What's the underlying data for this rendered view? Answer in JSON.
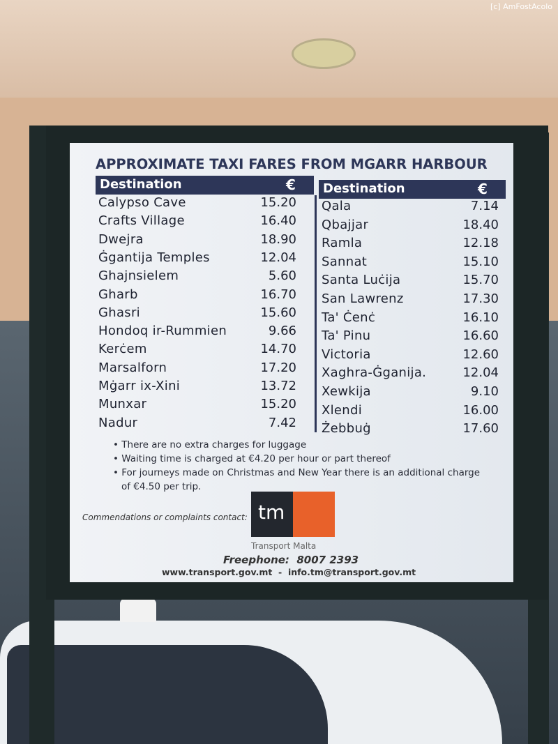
{
  "watermark": "[c] AmFostAcolo",
  "title": "APPROXIMATE TAXI FARES FROM MGARR HARBOUR",
  "tables": [
    {
      "header": [
        "Destination",
        "€"
      ],
      "rows": [
        [
          "Calypso Cave",
          "15.20"
        ],
        [
          "Crafts Village",
          "16.40"
        ],
        [
          "Dwejra",
          "18.90"
        ],
        [
          "Ġgantija Temples",
          "12.04"
        ],
        [
          "Ghajnsielem",
          "5.60"
        ],
        [
          "Gharb",
          "16.70"
        ],
        [
          "Ghasri",
          "15.60"
        ],
        [
          "Hondoq ir-Rummien",
          "9.66"
        ],
        [
          "Kerċem",
          "14.70"
        ],
        [
          "Marsalforn",
          "17.20"
        ],
        [
          "Mġarr ix-Xini",
          "13.72"
        ],
        [
          "Munxar",
          "15.20"
        ],
        [
          "Nadur",
          "7.42"
        ]
      ]
    },
    {
      "header": [
        "Destination",
        "€"
      ],
      "rows": [
        [
          "Qala",
          "7.14"
        ],
        [
          "Qbajjar",
          "18.40"
        ],
        [
          "Ramla",
          "12.18"
        ],
        [
          "Sannat",
          "15.10"
        ],
        [
          "Santa Luċija",
          "15.70"
        ],
        [
          "San Lawrenz",
          "17.30"
        ],
        [
          "Ta' Ċenċ",
          "16.10"
        ],
        [
          "Ta' Pinu",
          "16.60"
        ],
        [
          "Victoria",
          "12.60"
        ],
        [
          "Xaghra-Ġganija.",
          "12.04"
        ],
        [
          "Xewkija",
          "9.10"
        ],
        [
          "Xlendi",
          "16.00"
        ],
        [
          "Żebbuġ",
          "17.60"
        ]
      ]
    }
  ],
  "notes": [
    "There are no extra charges for luggage",
    "Waiting time is charged at €4.20 per hour or part thereof",
    "For journeys made on Christmas and New Year there is an additional charge of €4.50 per trip."
  ],
  "contact": "Commendations or complaints contact:",
  "logo": {
    "mark": "tm",
    "name": "Transport Malta"
  },
  "freephone": "Freephone:  8007 2393",
  "web": "www.transport.gov.mt  -  info.tm@transport.gov.mt"
}
